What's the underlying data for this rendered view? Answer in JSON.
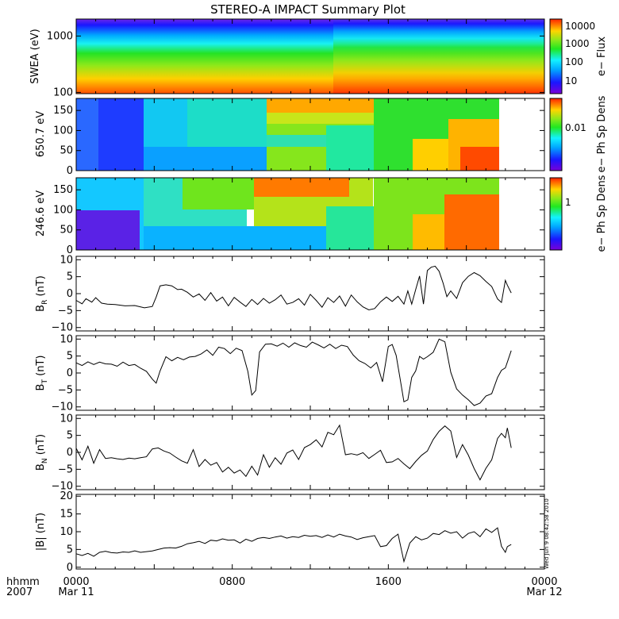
{
  "title": "STEREO-A IMPACT Summary Plot",
  "timestamp": "Wed Jun 9 08:42:58 2010",
  "time_axis": {
    "row1_label": "hhmm",
    "row2_label": "2007",
    "ticks": [
      {
        "hours": 0,
        "label": "0000",
        "date": "Mar 11"
      },
      {
        "hours": 8,
        "label": "0800",
        "date": ""
      },
      {
        "hours": 16,
        "label": "1600",
        "date": ""
      },
      {
        "hours": 24,
        "label": "0000",
        "date": "Mar 12"
      }
    ]
  },
  "chart_data": [
    {
      "type": "heatmap",
      "id": "swea",
      "ylabel": "SWEA (eV)",
      "ylog": true,
      "ylim": [
        95,
        2000
      ],
      "yticks": [
        {
          "v": 100,
          "label": "100"
        },
        {
          "v": 1000,
          "label": "1000"
        }
      ],
      "colorbar": {
        "label": "e− Flux",
        "ticks": [
          "10",
          "100",
          "1000",
          "10000"
        ]
      },
      "data_end_hours": 24
    },
    {
      "type": "heatmap",
      "id": "pad650",
      "ylabel": "650.7 eV",
      "ylim": [
        0,
        180
      ],
      "yticks": [
        {
          "v": 0,
          "label": "0"
        },
        {
          "v": 50,
          "label": "50"
        },
        {
          "v": 100,
          "label": "100"
        },
        {
          "v": 150,
          "label": "150"
        }
      ],
      "colorbar": {
        "label": "e− Ph Sp Dens",
        "ticks": [
          "0.01"
        ]
      },
      "data_end_hours": 22.3
    },
    {
      "type": "heatmap",
      "id": "pad246",
      "ylabel": "246.6 eV",
      "ylim": [
        0,
        180
      ],
      "yticks": [
        {
          "v": 0,
          "label": "0"
        },
        {
          "v": 50,
          "label": "50"
        },
        {
          "v": 100,
          "label": "100"
        },
        {
          "v": 150,
          "label": "150"
        }
      ],
      "colorbar": {
        "label": "e− Ph Sp Dens",
        "ticks": [
          "1"
        ]
      },
      "data_end_hours": 22.3
    },
    {
      "type": "line",
      "id": "br",
      "ylabel": "B",
      "ylabel_sub": "R",
      "ylabel_unit": " (nT)",
      "ylim": [
        -11,
        11
      ],
      "yticks": [
        {
          "v": -10,
          "label": "−10"
        },
        {
          "v": -5,
          "label": "−5"
        },
        {
          "v": 0,
          "label": "0"
        },
        {
          "v": 5,
          "label": "5"
        },
        {
          "v": 10,
          "label": "10"
        }
      ],
      "x": [
        0,
        0.3,
        0.5,
        0.8,
        1.0,
        1.3,
        1.6,
        2.0,
        2.5,
        3.0,
        3.5,
        3.9,
        4.1,
        4.3,
        4.6,
        4.9,
        5.2,
        5.4,
        5.7,
        6.0,
        6.3,
        6.6,
        6.9,
        7.2,
        7.5,
        7.8,
        8.1,
        8.4,
        8.7,
        9.0,
        9.3,
        9.6,
        9.9,
        10.2,
        10.5,
        10.8,
        11.1,
        11.4,
        11.7,
        12.0,
        12.3,
        12.6,
        12.9,
        13.2,
        13.5,
        13.8,
        14.1,
        14.4,
        14.7,
        15.0,
        15.3,
        15.6,
        15.9,
        16.2,
        16.5,
        16.8,
        17.0,
        17.2,
        17.4,
        17.6,
        17.8,
        18.0,
        18.2,
        18.4,
        18.6,
        18.8,
        19.0,
        19.2,
        19.5,
        19.8,
        20.1,
        20.4,
        20.7,
        21.0,
        21.3,
        21.6,
        21.8,
        22.0,
        22.1,
        22.3
      ],
      "y": [
        -2,
        -3,
        -1.5,
        -2.5,
        -1.2,
        -2.8,
        -3.1,
        -3.2,
        -3.6,
        -3.5,
        -4.2,
        -3.8,
        -1,
        2.3,
        2.6,
        2.3,
        1.2,
        1.3,
        0.4,
        -1,
        -0.1,
        -2,
        0.3,
        -2.2,
        -1,
        -3.6,
        -1.1,
        -2.5,
        -3.8,
        -1.7,
        -3.2,
        -1.4,
        -2.8,
        -1.8,
        -0.4,
        -3.1,
        -2.6,
        -1.5,
        -3.4,
        -0.2,
        -2,
        -4,
        -1.2,
        -2.6,
        -0.7,
        -3.7,
        -0.4,
        -2.4,
        -3.9,
        -4.8,
        -4.4,
        -2.4,
        -1,
        -2.3,
        -0.8,
        -3.1,
        0.8,
        -3.1,
        1.2,
        5.2,
        -3.1,
        6.8,
        7.8,
        8.1,
        6.6,
        3.2,
        -0.9,
        0.8,
        -1.4,
        3.2,
        5.1,
        6.2,
        5.3,
        3.6,
        2.1,
        -1.6,
        -2.6,
        3.9,
        2.5,
        0.2
      ],
      "style": "line"
    },
    {
      "type": "line",
      "id": "bt",
      "ylabel": "B",
      "ylabel_sub": "T",
      "ylabel_unit": " (nT)",
      "ylim": [
        -11,
        11
      ],
      "yticks": [
        {
          "v": -10,
          "label": "−10"
        },
        {
          "v": -5,
          "label": "−5"
        },
        {
          "v": 0,
          "label": "0"
        },
        {
          "v": 5,
          "label": "5"
        },
        {
          "v": 10,
          "label": "10"
        }
      ],
      "x": [
        0,
        0.3,
        0.6,
        0.9,
        1.2,
        1.5,
        1.8,
        2.1,
        2.4,
        2.7,
        3.0,
        3.3,
        3.6,
        3.9,
        4.1,
        4.3,
        4.6,
        4.9,
        5.2,
        5.5,
        5.8,
        6.1,
        6.4,
        6.7,
        7.0,
        7.3,
        7.6,
        7.9,
        8.2,
        8.5,
        8.8,
        9.0,
        9.2,
        9.4,
        9.7,
        10.0,
        10.3,
        10.6,
        10.9,
        11.2,
        11.5,
        11.8,
        12.1,
        12.4,
        12.7,
        13.0,
        13.3,
        13.6,
        13.9,
        14.2,
        14.5,
        14.8,
        15.1,
        15.4,
        15.7,
        16.0,
        16.2,
        16.4,
        16.6,
        16.8,
        17.0,
        17.2,
        17.4,
        17.6,
        17.8,
        18.0,
        18.3,
        18.6,
        18.9,
        19.2,
        19.5,
        19.8,
        20.1,
        20.4,
        20.7,
        21.0,
        21.3,
        21.6,
        21.8,
        22.0,
        22.1,
        22.3
      ],
      "y": [
        3,
        2.2,
        3.3,
        2.5,
        3.2,
        2.7,
        2.6,
        2,
        3.2,
        2.2,
        2.5,
        1.4,
        0.5,
        -1.8,
        -3,
        0.6,
        4.8,
        3.6,
        4.6,
        3.9,
        4.7,
        4.9,
        5.6,
        6.8,
        5.2,
        7.6,
        7.2,
        5.7,
        7.3,
        6.6,
        0.5,
        -6.5,
        -5.2,
        6.2,
        8.5,
        8.6,
        7.9,
        8.8,
        7.6,
        8.9,
        8.1,
        7.6,
        9.1,
        8.3,
        7.4,
        8.5,
        7.2,
        8.2,
        7.8,
        5.3,
        3.6,
        2.8,
        1.5,
        3.1,
        -2.6,
        7.8,
        8.4,
        5.2,
        -1.6,
        -8.5,
        -7.9,
        -1.3,
        0.6,
        4.9,
        4.1,
        4.8,
        6.1,
        10,
        9.2,
        0.2,
        -4.7,
        -6.5,
        -7.9,
        -9.6,
        -8.9,
        -6.8,
        -6.1,
        -1.3,
        0.8,
        1.5,
        3.2,
        6.6
      ],
      "style": "line"
    },
    {
      "type": "line",
      "id": "bn",
      "ylabel": "B",
      "ylabel_sub": "N",
      "ylabel_unit": " (nT)",
      "ylim": [
        -11,
        11
      ],
      "yticks": [
        {
          "v": -10,
          "label": "−10"
        },
        {
          "v": -5,
          "label": "−5"
        },
        {
          "v": 0,
          "label": "0"
        },
        {
          "v": 5,
          "label": "5"
        },
        {
          "v": 10,
          "label": "10"
        }
      ],
      "x": [
        0,
        0.3,
        0.6,
        0.9,
        1.2,
        1.5,
        1.8,
        2.1,
        2.4,
        2.7,
        3.0,
        3.3,
        3.6,
        3.9,
        4.2,
        4.5,
        4.8,
        5.1,
        5.4,
        5.7,
        6.0,
        6.3,
        6.6,
        6.9,
        7.2,
        7.5,
        7.8,
        8.1,
        8.4,
        8.7,
        9.0,
        9.3,
        9.6,
        9.9,
        10.2,
        10.5,
        10.8,
        11.1,
        11.4,
        11.7,
        12.0,
        12.3,
        12.6,
        12.9,
        13.2,
        13.5,
        13.8,
        14.1,
        14.4,
        14.7,
        15.0,
        15.3,
        15.6,
        15.9,
        16.2,
        16.5,
        16.8,
        17.1,
        17.4,
        17.7,
        18.0,
        18.3,
        18.6,
        18.9,
        19.2,
        19.5,
        19.8,
        20.1,
        20.4,
        20.7,
        21.0,
        21.3,
        21.6,
        21.8,
        22.0,
        22.1,
        22.3
      ],
      "y": [
        1.2,
        -2.2,
        1.8,
        -3.2,
        0.8,
        -1.8,
        -1.6,
        -1.9,
        -2.1,
        -1.7,
        -1.9,
        -1.6,
        -1.3,
        1,
        1.3,
        0.4,
        -0.2,
        -1.4,
        -2.5,
        -3.2,
        0.8,
        -4.2,
        -2.1,
        -3.8,
        -3,
        -5.8,
        -4.4,
        -6.1,
        -5.2,
        -7.1,
        -4.1,
        -6.7,
        -0.7,
        -4.4,
        -1.6,
        -3.5,
        -0.2,
        0.7,
        -2.1,
        1.4,
        2.3,
        3.7,
        1.6,
        5.9,
        5.2,
        8,
        -0.7,
        -0.4,
        -0.8,
        -0.1,
        -1.8,
        -0.6,
        0.6,
        -3,
        -2.8,
        -1.8,
        -3.4,
        -4.8,
        -2.7,
        -0.9,
        0.4,
        3.8,
        6.2,
        7.8,
        6.3,
        -1.5,
        2.3,
        -0.8,
        -4.8,
        -8.1,
        -4.7,
        -2.2,
        4.1,
        5.6,
        4.3,
        7.2,
        1.3
      ],
      "style": "line"
    },
    {
      "type": "line",
      "id": "bmag",
      "ylabel": "|B| (nT)",
      "ylim": [
        -0.5,
        20.5
      ],
      "yticks": [
        {
          "v": 0,
          "label": "0"
        },
        {
          "v": 5,
          "label": "5"
        },
        {
          "v": 10,
          "label": "10"
        },
        {
          "v": 15,
          "label": "15"
        },
        {
          "v": 20,
          "label": "20"
        }
      ],
      "x": [
        0,
        0.3,
        0.6,
        0.9,
        1.2,
        1.5,
        1.8,
        2.1,
        2.4,
        2.7,
        3.0,
        3.3,
        3.6,
        3.9,
        4.2,
        4.5,
        4.8,
        5.1,
        5.4,
        5.7,
        6.0,
        6.3,
        6.6,
        6.9,
        7.2,
        7.5,
        7.8,
        8.1,
        8.4,
        8.7,
        9.0,
        9.3,
        9.6,
        9.9,
        10.2,
        10.5,
        10.8,
        11.1,
        11.4,
        11.7,
        12.0,
        12.3,
        12.6,
        12.9,
        13.2,
        13.5,
        13.8,
        14.1,
        14.4,
        14.7,
        15.0,
        15.3,
        15.6,
        15.9,
        16.2,
        16.5,
        16.8,
        17.1,
        17.4,
        17.7,
        18.0,
        18.3,
        18.6,
        18.9,
        19.2,
        19.5,
        19.8,
        20.1,
        20.4,
        20.7,
        21.0,
        21.3,
        21.6,
        21.8,
        22.0,
        22.1,
        22.3
      ],
      "y": [
        3.8,
        3.3,
        3.9,
        3.1,
        4.2,
        4.5,
        4.1,
        4,
        4.3,
        4.2,
        4.6,
        4.2,
        4.4,
        4.6,
        5,
        5.4,
        5.5,
        5.4,
        5.9,
        6.6,
        6.9,
        7.3,
        6.7,
        7.6,
        7.4,
        8,
        7.6,
        7.7,
        6.8,
        7.9,
        7.3,
        8.1,
        8.4,
        8.1,
        8.5,
        8.8,
        8.2,
        8.6,
        8.4,
        9,
        8.7,
        8.9,
        8.4,
        9.1,
        8.5,
        9.3,
        8.8,
        8.5,
        7.8,
        8.3,
        8.6,
        8.9,
        5.8,
        6.1,
        8.1,
        9.3,
        1.6,
        6.8,
        8.6,
        7.7,
        8.2,
        9.5,
        9.2,
        10.3,
        9.6,
        10,
        8.2,
        9.5,
        10,
        8.6,
        10.8,
        9.8,
        11.1,
        5.9,
        4.2,
        5.8,
        6.4
      ],
      "style": "line"
    }
  ]
}
